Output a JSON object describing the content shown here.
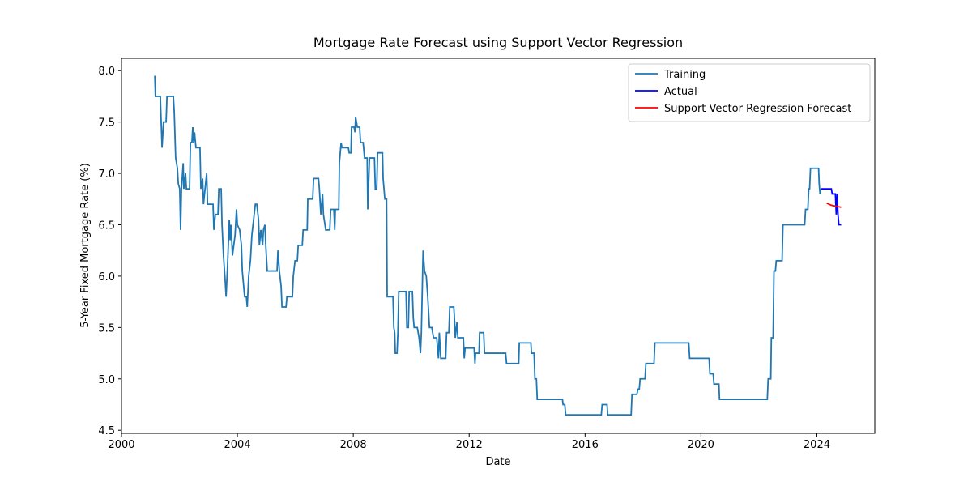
{
  "chart_data": {
    "type": "line",
    "title": "Mortgage Rate Forecast using Support Vector Regression",
    "xlabel": "Date",
    "ylabel": "5-Year Fixed Mortgage Rate (%)",
    "xlim": [
      2000,
      2026
    ],
    "ylim": [
      4.47,
      8.12
    ],
    "xticks": [
      2000,
      2004,
      2008,
      2012,
      2016,
      2020,
      2024
    ],
    "yticks": [
      4.5,
      {
        "value": 5,
        "label": "5.0"
      },
      5.5,
      {
        "value": 6,
        "label": "6.0"
      },
      6.5,
      {
        "value": 7,
        "label": "7.0"
      },
      7.5,
      {
        "value": 8,
        "label": "8.0"
      }
    ],
    "grid": false,
    "legend": "upper right",
    "series": [
      {
        "name": "Training",
        "color": "#1f77b4",
        "x": [
          2001.15,
          2001.17,
          2001.34,
          2001.37,
          2001.4,
          2001.45,
          2001.54,
          2001.57,
          2001.79,
          2001.82,
          2001.87,
          2001.93,
          2001.96,
          2002.01,
          2002.04,
          2002.07,
          2002.13,
          2002.15,
          2002.21,
          2002.24,
          2002.35,
          2002.38,
          2002.43,
          2002.46,
          2002.49,
          2002.52,
          2002.57,
          2002.71,
          2002.74,
          2002.8,
          2002.83,
          2002.94,
          2002.97,
          2003.16,
          2003.19,
          2003.24,
          2003.33,
          2003.36,
          2003.44,
          2003.47,
          2003.52,
          2003.58,
          2003.61,
          2003.66,
          2003.72,
          2003.75,
          2003.78,
          2003.83,
          2003.92,
          2003.97,
          2004.0,
          2004.08,
          2004.14,
          2004.17,
          2004.25,
          2004.31,
          2004.34,
          2004.39,
          2004.45,
          2004.5,
          2004.56,
          2004.62,
          2004.67,
          2004.73,
          2004.76,
          2004.81,
          2004.87,
          2004.9,
          2004.95,
          2004.98,
          2005.03,
          2005.37,
          2005.4,
          2005.45,
          2005.51,
          2005.54,
          2005.68,
          2005.71,
          2005.9,
          2005.93,
          2005.99,
          2006.07,
          2006.1,
          2006.24,
          2006.27,
          2006.41,
          2006.43,
          2006.6,
          2006.63,
          2006.8,
          2006.83,
          2006.88,
          2006.94,
          2006.97,
          2007.05,
          2007.19,
          2007.22,
          2007.33,
          2007.36,
          2007.38,
          2007.5,
          2007.52,
          2007.58,
          2007.61,
          2007.83,
          2007.86,
          2007.92,
          2007.94,
          2008.03,
          2008.06,
          2008.08,
          2008.14,
          2008.22,
          2008.25,
          2008.34,
          2008.39,
          2008.48,
          2008.5,
          2008.56,
          2008.73,
          2008.76,
          2008.81,
          2008.84,
          2009.01,
          2009.03,
          2009.09,
          2009.15,
          2009.17,
          2009.37,
          2009.4,
          2009.43,
          2009.45,
          2009.51,
          2009.54,
          2009.57,
          2009.82,
          2009.85,
          2009.9,
          2009.93,
          2010.04,
          2010.07,
          2010.1,
          2010.21,
          2010.27,
          2010.32,
          2010.35,
          2010.38,
          2010.41,
          2010.46,
          2010.52,
          2010.57,
          2010.63,
          2010.71,
          2010.77,
          2010.88,
          2010.91,
          2010.94,
          2010.97,
          2011.02,
          2011.19,
          2011.22,
          2011.3,
          2011.33,
          2011.47,
          2011.5,
          2011.52,
          2011.58,
          2011.61,
          2011.8,
          2011.83,
          2011.86,
          2012.17,
          2012.2,
          2012.22,
          2012.34,
          2012.36,
          2012.5,
          2012.53,
          2013.26,
          2013.29,
          2013.71,
          2013.73,
          2014.13,
          2014.15,
          2014.24,
          2014.27,
          2014.32,
          2014.35,
          2015.22,
          2015.24,
          2015.3,
          2015.33,
          2016.56,
          2016.59,
          2016.76,
          2016.78,
          2017.59,
          2017.62,
          2017.79,
          2017.82,
          2017.87,
          2017.9,
          2018.07,
          2018.1,
          2018.38,
          2018.41,
          2019.58,
          2019.61,
          2020.28,
          2020.31,
          2020.42,
          2020.45,
          2020.62,
          2020.64,
          2022.29,
          2022.32,
          2022.41,
          2022.43,
          2022.49,
          2022.52,
          2022.57,
          2022.6,
          2022.8,
          2022.83,
          2023.58,
          2023.61,
          2023.69,
          2023.72,
          2023.75,
          2023.78,
          2024.06,
          2024.08,
          2024.11,
          2024.14
        ],
        "values": [
          7.95,
          7.75,
          7.75,
          7.5,
          7.25,
          7.5,
          7.5,
          7.75,
          7.75,
          7.6,
          7.15,
          7.05,
          6.9,
          6.85,
          6.45,
          6.85,
          7.1,
          6.85,
          7.0,
          6.85,
          6.85,
          7.3,
          7.3,
          7.45,
          7.3,
          7.4,
          7.25,
          7.25,
          6.85,
          6.95,
          6.7,
          7.0,
          6.7,
          6.7,
          6.45,
          6.6,
          6.6,
          6.85,
          6.85,
          6.5,
          6.2,
          5.95,
          5.8,
          6.1,
          6.55,
          6.35,
          6.5,
          6.2,
          6.4,
          6.65,
          6.5,
          6.45,
          6.3,
          6.05,
          5.8,
          5.8,
          5.7,
          6.0,
          6.15,
          6.4,
          6.55,
          6.7,
          6.7,
          6.55,
          6.3,
          6.45,
          6.3,
          6.45,
          6.5,
          6.3,
          6.05,
          6.05,
          6.25,
          6.05,
          5.9,
          5.7,
          5.7,
          5.8,
          5.8,
          6.0,
          6.15,
          6.15,
          6.3,
          6.3,
          6.45,
          6.45,
          6.75,
          6.75,
          6.95,
          6.95,
          6.85,
          6.6,
          6.8,
          6.6,
          6.45,
          6.45,
          6.65,
          6.65,
          6.45,
          6.65,
          6.65,
          7.1,
          7.3,
          7.25,
          7.25,
          7.2,
          7.2,
          7.45,
          7.45,
          7.4,
          7.55,
          7.45,
          7.45,
          7.3,
          7.3,
          7.15,
          7.15,
          6.65,
          7.15,
          7.15,
          6.85,
          6.85,
          7.2,
          7.2,
          6.95,
          6.75,
          6.75,
          5.8,
          5.8,
          5.5,
          5.45,
          5.25,
          5.25,
          5.45,
          5.85,
          5.85,
          5.5,
          5.5,
          5.85,
          5.85,
          5.6,
          5.5,
          5.5,
          5.4,
          5.25,
          5.45,
          5.85,
          6.25,
          6.05,
          6.0,
          5.8,
          5.5,
          5.5,
          5.4,
          5.4,
          5.3,
          5.2,
          5.45,
          5.2,
          5.2,
          5.45,
          5.45,
          5.7,
          5.7,
          5.55,
          5.4,
          5.55,
          5.4,
          5.4,
          5.2,
          5.3,
          5.3,
          5.15,
          5.25,
          5.25,
          5.45,
          5.45,
          5.25,
          5.25,
          5.15,
          5.15,
          5.35,
          5.35,
          5.25,
          5.25,
          5.0,
          5.0,
          4.8,
          4.8,
          4.75,
          4.75,
          4.65,
          4.65,
          4.75,
          4.75,
          4.65,
          4.65,
          4.85,
          4.85,
          4.9,
          4.9,
          5.0,
          5.0,
          5.15,
          5.15,
          5.35,
          5.35,
          5.2,
          5.2,
          5.05,
          5.05,
          4.95,
          4.95,
          4.8,
          4.8,
          5.0,
          5.0,
          5.4,
          5.4,
          6.05,
          6.05,
          6.15,
          6.15,
          6.5,
          6.5,
          6.65,
          6.65,
          6.85,
          6.85,
          7.05,
          7.05,
          6.9,
          6.8,
          6.85
        ]
      },
      {
        "name": "Actual",
        "color": "#0000ff",
        "x": [
          2024.14,
          2024.5,
          2024.53,
          2024.64,
          2024.67,
          2024.7,
          2024.73,
          2024.76,
          2024.84
        ],
        "values": [
          6.85,
          6.85,
          6.8,
          6.8,
          6.6,
          6.8,
          6.6,
          6.5,
          6.5
        ]
      },
      {
        "name": "Support Vector Regression Forecast",
        "color": "#ff0000",
        "x": [
          2024.34,
          2024.5,
          2024.67,
          2024.84
        ],
        "values": [
          6.71,
          6.69,
          6.68,
          6.67
        ]
      }
    ]
  }
}
